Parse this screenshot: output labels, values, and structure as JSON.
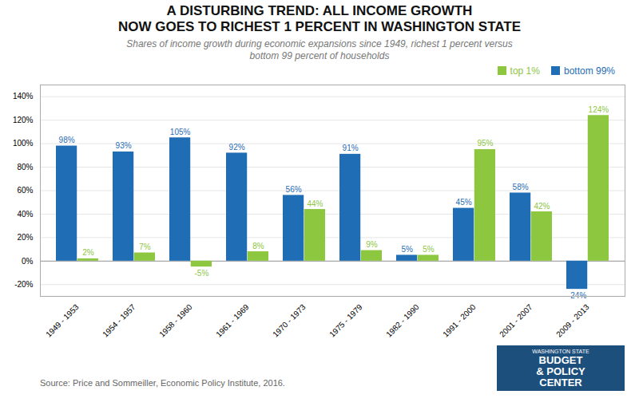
{
  "chart_data": {
    "type": "bar",
    "title": "A DISTURBING TREND: ALL INCOME GROWTH\nNOW GOES TO RICHEST 1 PERCENT IN WASHINGTON STATE",
    "subtitle": "Shares of income growth during economic expansions since 1949, richest 1 percent versus\nbottom 99 percent of households",
    "source": "Source: Price and Sommeiller, Economic Policy Institute, 2016.",
    "logo": {
      "lines": [
        "WASHINGTON STATE",
        "BUDGET",
        "& POLICY",
        "CENTER"
      ],
      "color": "#1d4f7c",
      "text_color": "#ffffff"
    },
    "categories": [
      "1949 - 1953",
      "1954 - 1957",
      "1958 - 1960",
      "1961 - 1969",
      "1970 - 1973",
      "1975 - 1979",
      "1982 - 1990",
      "1991 - 2000",
      "2001 - 2007",
      "2009 - 2013"
    ],
    "series": [
      {
        "name": "top 1%",
        "color": "#8dc63f",
        "values": [
          2,
          7,
          -5,
          8,
          44,
          9,
          5,
          95,
          42,
          124
        ],
        "value_labels": [
          "2%",
          "7%",
          "-5%",
          "8%",
          "44%",
          "9%",
          "5%",
          "95%",
          "42%",
          "124%"
        ]
      },
      {
        "name": "bottom 99%",
        "color": "#1f6db5",
        "values": [
          98,
          93,
          105,
          92,
          56,
          91,
          5,
          45,
          58,
          -24
        ],
        "value_labels": [
          "98%",
          "93%",
          "105%",
          "92%",
          "56%",
          "91%",
          "5%",
          "45%",
          "58%",
          "-24%"
        ]
      }
    ],
    "ylim": [
      -30,
      150
    ],
    "yticks": [
      {
        "value": -20,
        "label": "-20%"
      },
      {
        "value": 0,
        "label": "0%"
      },
      {
        "value": 20,
        "label": "20%"
      },
      {
        "value": 40,
        "label": "40%"
      },
      {
        "value": 60,
        "label": "60%"
      },
      {
        "value": 80,
        "label": "80%"
      },
      {
        "value": 100,
        "label": "100%"
      },
      {
        "value": 120,
        "label": "120%"
      },
      {
        "value": 140,
        "label": "140%"
      }
    ],
    "grid": true,
    "legend": "upper right",
    "data_labels": true
  }
}
